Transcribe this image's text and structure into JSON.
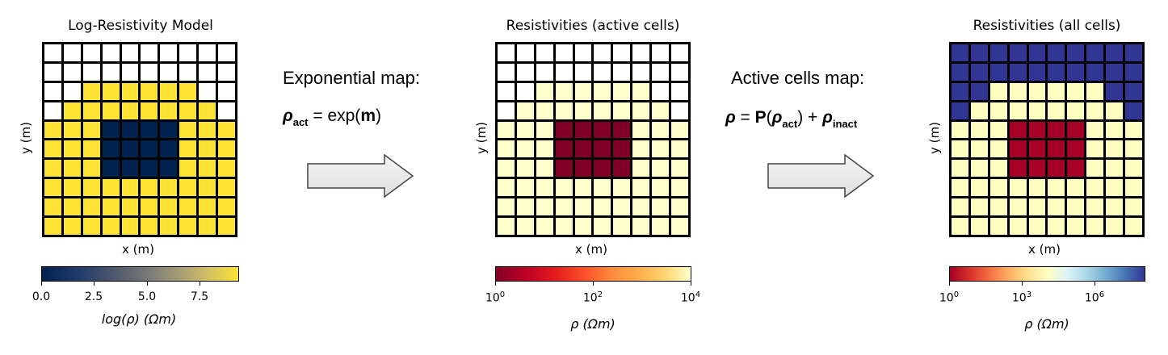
{
  "panels": {
    "model": {
      "title": "Log-Resistivity Model",
      "xlabel": "x (m)",
      "ylabel": "y (m)",
      "colorbar_label": "log(ρ) (Ωm)",
      "colorbar_ticks": [
        "0.0",
        "2.5",
        "5.0",
        "7.5"
      ],
      "colors": {
        "inactive": "#ffffff",
        "background": "#fde333",
        "block": "#00224e"
      }
    },
    "active": {
      "title": "Resistivities (active cells)",
      "xlabel": "x (m)",
      "ylabel": "y (m)",
      "colorbar_label": "ρ (Ωm)",
      "colorbar_ticks": [
        {
          "base": "10",
          "exp": "0"
        },
        {
          "base": "10",
          "exp": "2"
        },
        {
          "base": "10",
          "exp": "4"
        }
      ],
      "colors": {
        "inactive": "#ffffff",
        "background": "#ffffcc",
        "block": "#800026"
      }
    },
    "all": {
      "title": "Resistivities (all cells)",
      "xlabel": "x (m)",
      "ylabel": "y (m)",
      "colorbar_label": "ρ (Ωm)",
      "colorbar_ticks": [
        {
          "base": "10",
          "exp": "0"
        },
        {
          "base": "10",
          "exp": "3"
        },
        {
          "base": "10",
          "exp": "6"
        }
      ],
      "colors": {
        "inactive": "#313695",
        "background": "#fefec0",
        "block": "#a50026"
      }
    }
  },
  "grid": {
    "rows": 10,
    "cols": 10,
    "active_start_col_by_row": [
      10,
      10,
      2,
      1,
      0,
      0,
      0,
      0,
      0,
      0
    ],
    "active_end_col_by_row": [
      -1,
      -1,
      7,
      8,
      9,
      9,
      9,
      9,
      9,
      9
    ],
    "block_rows": [
      4,
      5,
      6
    ],
    "block_cols": [
      3,
      4,
      5,
      6
    ]
  },
  "steps": {
    "exponential": {
      "label": "Exponential map:",
      "lhs_symbol": "ρ",
      "lhs_sub": "act",
      "rhs_text": " = exp(",
      "rhs_bold": "m",
      "rhs_close": ")"
    },
    "active_cells": {
      "label": "Active cells map:",
      "lhs_symbol": "ρ",
      "eq": " = ",
      "op": "P",
      "open": "(",
      "arg_symbol": "ρ",
      "arg_sub": "act",
      "close_plus": ") + ",
      "add_symbol": "ρ",
      "add_sub": "inact"
    }
  }
}
